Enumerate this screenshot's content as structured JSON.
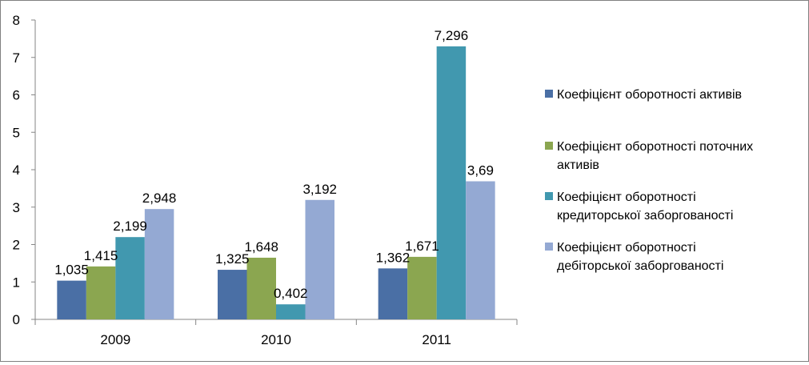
{
  "chart_data": {
    "type": "bar",
    "categories": [
      "2009",
      "2010",
      "2011"
    ],
    "ylim": [
      0,
      8
    ],
    "yticks": [
      "0",
      "1",
      "2",
      "3",
      "4",
      "5",
      "6",
      "7",
      "8"
    ],
    "grid": false,
    "legend_position": "right",
    "series": [
      {
        "name": "Коефіцієнт оборотності активів",
        "name_lines": [
          "Коефіцієнт оборотності активів"
        ],
        "color": "#4A6FA5",
        "values": [
          1.035,
          1.325,
          1.362
        ],
        "labels": [
          "1,035",
          "1,325",
          "1,362"
        ]
      },
      {
        "name": "Коефіцієнт оборотності поточних активів",
        "name_lines": [
          "Коефіцієнт оборотності поточних",
          "активів"
        ],
        "color": "#8BA650",
        "values": [
          1.415,
          1.648,
          1.671
        ],
        "labels": [
          "1,415",
          "1,648",
          "1,671"
        ]
      },
      {
        "name": "Коефіцієнт оборотності кредиторської заборгованості",
        "name_lines": [
          "Коефіцієнт оборотності",
          "кредиторської заборгованості"
        ],
        "color": "#4198AF",
        "values": [
          2.199,
          0.402,
          7.296
        ],
        "labels": [
          "2,199",
          "0,402",
          "7,296"
        ]
      },
      {
        "name": "Коефіцієнт оборотності дебіторської заборгованості",
        "name_lines": [
          "Коефіцієнт оборотності",
          "дебіторської заборгованості"
        ],
        "color": "#94A9D3",
        "values": [
          2.948,
          3.192,
          3.69
        ],
        "labels": [
          "2,948",
          "3,192",
          "3,69"
        ]
      }
    ]
  }
}
